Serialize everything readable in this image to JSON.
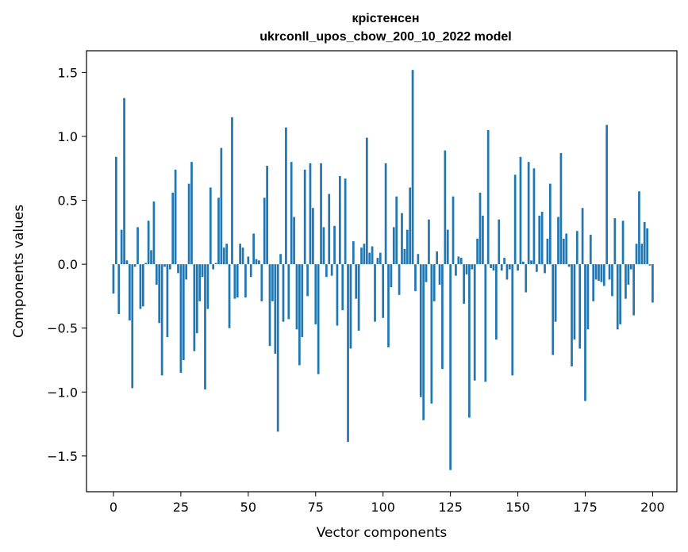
{
  "chart_data": {
    "type": "bar",
    "title": "крістенсен",
    "subtitle": "ukrconll_upos_cbow_200_10_2022 model",
    "xlabel": "Vector components",
    "ylabel": "Components values",
    "xlim": [
      -10,
      209
    ],
    "ylim": [
      -1.78,
      1.67
    ],
    "xticks": [
      0,
      25,
      50,
      75,
      100,
      125,
      150,
      175,
      200
    ],
    "yticks": [
      -1.5,
      -1.0,
      -0.5,
      0.0,
      0.5,
      1.0,
      1.5
    ],
    "ytick_labels": [
      "−1.5",
      "−1.0",
      "−0.5",
      "0.0",
      "0.5",
      "1.0",
      "1.5"
    ],
    "bar_color": "#1f77b4",
    "values": [
      -0.23,
      0.84,
      -0.39,
      0.27,
      1.3,
      0.03,
      -0.44,
      -0.97,
      -0.02,
      0.29,
      -0.35,
      -0.33,
      0.01,
      0.34,
      0.11,
      0.49,
      -0.16,
      -0.46,
      -0.87,
      -0.02,
      -0.57,
      -0.04,
      0.56,
      0.74,
      -0.07,
      -0.85,
      -0.75,
      -0.12,
      0.63,
      0.8,
      -0.68,
      -0.54,
      -0.29,
      -0.1,
      -0.98,
      -0.35,
      0.6,
      -0.04,
      0.01,
      0.52,
      0.91,
      0.13,
      0.16,
      -0.5,
      1.15,
      -0.27,
      -0.26,
      0.16,
      0.13,
      -0.26,
      0.06,
      -0.1,
      0.24,
      0.04,
      0.03,
      -0.29,
      0.52,
      0.77,
      -0.64,
      -0.29,
      -0.7,
      -1.31,
      0.08,
      -0.45,
      1.07,
      -0.43,
      0.8,
      0.37,
      -0.51,
      -0.79,
      -0.57,
      0.74,
      -0.25,
      0.79,
      0.44,
      -0.47,
      -0.86,
      0.79,
      0.29,
      -0.1,
      0.55,
      -0.09,
      0.3,
      -0.48,
      0.69,
      -0.36,
      0.67,
      -1.39,
      -0.66,
      0.18,
      -0.27,
      -0.52,
      0.13,
      0.16,
      0.99,
      0.09,
      0.14,
      -0.45,
      0.05,
      0.09,
      -0.42,
      0.79,
      -0.65,
      -0.18,
      0.29,
      0.53,
      -0.24,
      0.4,
      0.12,
      0.27,
      0.6,
      1.52,
      -0.21,
      0.08,
      -1.04,
      -1.22,
      -0.14,
      0.35,
      -1.09,
      -0.29,
      0.1,
      -0.16,
      -0.82,
      0.89,
      0.27,
      -1.61,
      0.53,
      -0.09,
      0.06,
      0.05,
      -0.31,
      -0.08,
      -1.2,
      -0.04,
      -0.91,
      0.2,
      0.56,
      0.38,
      -0.92,
      1.05,
      -0.03,
      -0.05,
      -0.59,
      0.35,
      -0.05,
      0.05,
      -0.12,
      -0.04,
      -0.87,
      0.7,
      -0.05,
      0.84,
      0.02,
      -0.22,
      0.8,
      0.03,
      0.75,
      -0.06,
      0.38,
      0.41,
      -0.07,
      0.2,
      0.63,
      -0.71,
      -0.45,
      0.37,
      0.87,
      0.2,
      0.24,
      -0.02,
      -0.8,
      -0.59,
      0.26,
      -0.66,
      0.44,
      -1.07,
      -0.51,
      0.23,
      -0.29,
      -0.12,
      -0.13,
      -0.14,
      -0.17,
      1.09,
      -0.12,
      -0.25,
      0.36,
      -0.51,
      -0.47,
      0.34,
      -0.27,
      -0.16,
      -0.04,
      -0.4,
      0.16,
      0.57,
      0.16,
      0.33,
      0.28,
      -0.01,
      -0.3
    ]
  }
}
